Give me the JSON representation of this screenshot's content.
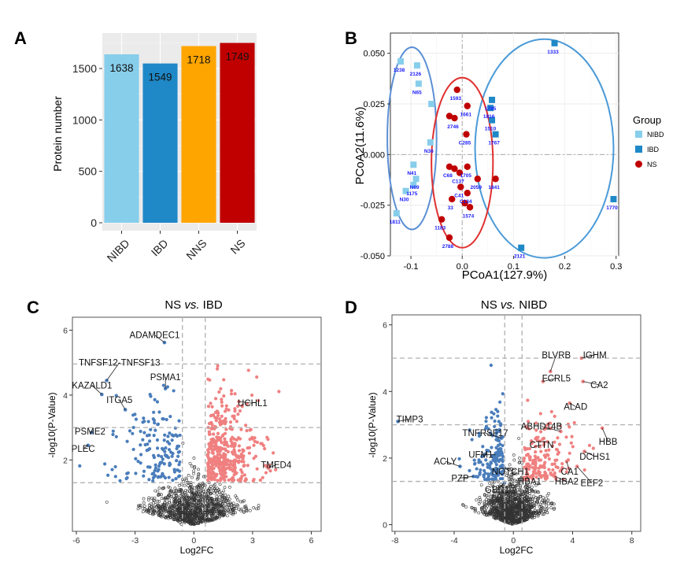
{
  "colors": {
    "NIBD": "#87ceeb",
    "IBD": "#1f88c7",
    "NNS": "#ffa500",
    "NS": "#c00000",
    "down": "#4a7dbb",
    "up": "#f08080",
    "ns_point": "#333333",
    "grid": "#ebebeb",
    "dash": "#b0b0b0",
    "ellipse_nibd": "#5b8fd4",
    "ellipse_ibd": "#4a9ad8",
    "ellipse_ns": "#e03030",
    "sample_label": "#1a1aff"
  },
  "chart_data": [
    {
      "panel": "A",
      "type": "bar",
      "title": "",
      "xlabel": "",
      "ylabel": "Protein number",
      "ylim": [
        0,
        1800
      ],
      "yticks": [
        0,
        500,
        1000,
        1500
      ],
      "categories": [
        "NIBD",
        "IBD",
        "NNS",
        "NS"
      ],
      "values": [
        1638,
        1549,
        1718,
        1749
      ],
      "bar_colors": [
        "#87ceeb",
        "#1f88c7",
        "#ffa500",
        "#c00000"
      ]
    },
    {
      "panel": "B",
      "type": "scatter",
      "title": "",
      "xlabel": "PCoA1(127.9%)",
      "ylabel": "PCoA2(11.6%)",
      "xlim": [
        -0.14,
        0.305
      ],
      "ylim": [
        -0.05,
        0.06
      ],
      "xticks": [
        -0.1,
        0.0,
        0.1,
        0.2,
        0.3
      ],
      "xtick_labels": [
        "-0.1",
        "0.0",
        "0.1",
        "0.2",
        "0.3"
      ],
      "yticks": [
        -0.05,
        -0.025,
        0.0,
        0.025,
        0.05
      ],
      "ytick_labels": [
        "-0.050",
        "-0.025",
        "0.000",
        "0.025",
        "0.050"
      ],
      "legend": {
        "title": "Group",
        "entries": [
          "NIBD",
          "IBD",
          "NS"
        ],
        "position": "right"
      },
      "series": [
        {
          "name": "NIBD",
          "points": [
            {
              "x": -0.12,
              "y": 0.046,
              "label": "1238"
            },
            {
              "x": -0.088,
              "y": 0.044,
              "label": "2126"
            },
            {
              "x": -0.085,
              "y": 0.035,
              "label": "N65"
            },
            {
              "x": -0.06,
              "y": 0.025,
              "label": ""
            },
            {
              "x": -0.062,
              "y": 0.006,
              "label": "N36"
            },
            {
              "x": -0.095,
              "y": -0.005,
              "label": "N41"
            },
            {
              "x": -0.09,
              "y": -0.012,
              "label": "N69"
            },
            {
              "x": -0.095,
              "y": -0.015,
              "label": "1175"
            },
            {
              "x": -0.11,
              "y": -0.018,
              "label": "N30"
            },
            {
              "x": -0.128,
              "y": -0.029,
              "label": "1811"
            }
          ]
        },
        {
          "name": "IBD",
          "points": [
            {
              "x": 0.18,
              "y": 0.055,
              "label": "1333"
            },
            {
              "x": 0.058,
              "y": 0.027,
              "label": "1785"
            },
            {
              "x": 0.055,
              "y": 0.023,
              "label": "1816"
            },
            {
              "x": 0.058,
              "y": 0.017,
              "label": "1510"
            },
            {
              "x": 0.065,
              "y": 0.01,
              "label": "1767"
            },
            {
              "x": 0.295,
              "y": -0.022,
              "label": "1770"
            },
            {
              "x": 0.115,
              "y": -0.046,
              "label": "2121"
            }
          ]
        },
        {
          "name": "NS",
          "points": [
            {
              "x": -0.01,
              "y": 0.032,
              "label": "1593"
            },
            {
              "x": 0.01,
              "y": 0.024,
              "label": "1661"
            },
            {
              "x": -0.025,
              "y": 0.019,
              "label": ""
            },
            {
              "x": -0.015,
              "y": 0.018,
              "label": "2746"
            },
            {
              "x": 0.008,
              "y": 0.01,
              "label": "C285"
            },
            {
              "x": -0.025,
              "y": -0.006,
              "label": "C68"
            },
            {
              "x": -0.015,
              "y": -0.007,
              "label": ""
            },
            {
              "x": 0.01,
              "y": -0.006,
              "label": "1705"
            },
            {
              "x": -0.005,
              "y": -0.009,
              "label": "C137"
            },
            {
              "x": 0.03,
              "y": -0.012,
              "label": "2059"
            },
            {
              "x": 0.065,
              "y": -0.012,
              "label": "1841"
            },
            {
              "x": -0.003,
              "y": -0.016,
              "label": "C41"
            },
            {
              "x": 0.01,
              "y": -0.019,
              "label": "C134"
            },
            {
              "x": -0.02,
              "y": -0.022,
              "label": "33"
            },
            {
              "x": 0.005,
              "y": -0.024,
              "label": ""
            },
            {
              "x": 0.015,
              "y": -0.026,
              "label": "1574"
            },
            {
              "x": -0.04,
              "y": -0.032,
              "label": "1183"
            },
            {
              "x": -0.025,
              "y": -0.041,
              "label": "2788"
            }
          ]
        }
      ],
      "ellipses": [
        {
          "group": "NIBD",
          "cx": -0.098,
          "cy": 0.008,
          "rx": 0.048,
          "ry": 0.045
        },
        {
          "group": "IBD",
          "cx": 0.16,
          "cy": 0.003,
          "rx": 0.135,
          "ry": 0.054
        },
        {
          "group": "NS",
          "cx": 0.0,
          "cy": -0.004,
          "rx": 0.06,
          "ry": 0.042
        }
      ]
    },
    {
      "panel": "C",
      "type": "scatter",
      "title": "NS vs. IBD",
      "title_prefix": "NS",
      "title_vs": "vs.",
      "title_suffix": "IBD",
      "xlabel": "Log2FC",
      "ylabel": "-log10(P-Value)",
      "xlim": [
        -6.2,
        6.5
      ],
      "ylim": [
        -0.2,
        6.4
      ],
      "xticks": [
        -6,
        -3,
        0,
        3,
        6
      ],
      "xtick_labels": [
        "-6",
        "-3",
        "0",
        "3",
        "6"
      ],
      "yticks": [
        2,
        4,
        6
      ],
      "ytick_labels": [
        "2",
        "4",
        "6"
      ],
      "vlines": [
        -0.585,
        0.585
      ],
      "hlines": [
        1.3,
        3.0,
        4.96
      ],
      "down_count": 150,
      "up_count": 400,
      "ns_count": 1100,
      "annotations": [
        {
          "text": "ADAMDEC1",
          "x": -1.5,
          "y": 5.62,
          "tx": -2.0,
          "ty": 5.85
        },
        {
          "text": "TNFSF12-TNFSF13",
          "x": -4.45,
          "y": 4.45,
          "tx": -3.8,
          "ty": 5.0
        },
        {
          "text": "PSMA1",
          "x": -1.45,
          "y": 4.2,
          "tx": -1.45,
          "ty": 4.55
        },
        {
          "text": "KAZALD1",
          "x": -4.7,
          "y": 4.02,
          "tx": -5.2,
          "ty": 4.3
        },
        {
          "text": "ITGA5",
          "x": -3.5,
          "y": 3.55,
          "tx": -3.8,
          "ty": 3.85
        },
        {
          "text": "UCHL1",
          "x": 2.3,
          "y": 3.8,
          "tx": 3.0,
          "ty": 3.75
        },
        {
          "text": "PSME2",
          "x": -5.2,
          "y": 2.85,
          "tx": -5.3,
          "ty": 2.88
        },
        {
          "text": "PLEC",
          "x": -5.4,
          "y": 2.45,
          "tx": -5.65,
          "ty": 2.35
        },
        {
          "text": "TMED4",
          "x": 3.8,
          "y": 1.75,
          "tx": 4.2,
          "ty": 1.85
        }
      ]
    },
    {
      "panel": "D",
      "type": "scatter",
      "title": "NS vs. NIBD",
      "title_prefix": "NS",
      "title_vs": "vs.",
      "title_suffix": "NIBD",
      "xlabel": "Log2FC",
      "ylabel": "-log10(P-Value)",
      "xlim": [
        -8.2,
        8.6
      ],
      "ylim": [
        -0.2,
        6.3
      ],
      "xticks": [
        -8,
        -4,
        0,
        4,
        8
      ],
      "xtick_labels": [
        "-8",
        "-4",
        "0",
        "4",
        "8"
      ],
      "yticks": [
        0,
        2,
        4,
        6
      ],
      "yticks_labels": [
        "0",
        "2",
        "4",
        "6"
      ],
      "vlines": [
        -0.585,
        0.585
      ],
      "hlines": [
        1.3,
        3.0,
        5.0
      ],
      "down_count": 150,
      "up_count": 170,
      "ns_count": 1100,
      "annotations": [
        {
          "text": "BLVRB",
          "x": 2.5,
          "y": 4.6,
          "tx": 2.9,
          "ty": 5.1
        },
        {
          "text": "IGHM",
          "x": 4.6,
          "y": 5.0,
          "tx": 5.5,
          "ty": 5.1
        },
        {
          "text": "FCRL5",
          "x": 2.0,
          "y": 4.3,
          "tx": 2.9,
          "ty": 4.4
        },
        {
          "text": "CA2",
          "x": 4.7,
          "y": 4.3,
          "tx": 5.8,
          "ty": 4.2
        },
        {
          "text": "ALAD",
          "x": 3.8,
          "y": 3.65,
          "tx": 4.2,
          "ty": 3.55
        },
        {
          "text": "TIMP3",
          "x": -7.8,
          "y": 3.1,
          "tx": -7.0,
          "ty": 3.17
        },
        {
          "text": "ABHD14B",
          "x": 3.2,
          "y": 2.8,
          "tx": 1.9,
          "ty": 2.95
        },
        {
          "text": "HBB",
          "x": 6.0,
          "y": 2.9,
          "tx": 6.4,
          "ty": 2.5
        },
        {
          "text": "TNFRSF17",
          "x": -0.8,
          "y": 2.6,
          "tx": -1.9,
          "ty": 2.75
        },
        {
          "text": "CTTN",
          "x": 1.5,
          "y": 2.35,
          "tx": 1.9,
          "ty": 2.4
        },
        {
          "text": "UFM1",
          "x": -1.2,
          "y": 2.1,
          "tx": -2.2,
          "ty": 2.1
        },
        {
          "text": "DCHS1",
          "x": 4.8,
          "y": 2.2,
          "tx": 5.5,
          "ty": 2.05
        },
        {
          "text": "ACLY",
          "x": -3.6,
          "y": 1.75,
          "tx": -4.6,
          "ty": 1.9
        },
        {
          "text": "NOTCH1",
          "x": -0.6,
          "y": 1.7,
          "tx": -0.2,
          "ty": 1.6
        },
        {
          "text": "CA1",
          "x": 3.6,
          "y": 1.9,
          "tx": 3.8,
          "ty": 1.6
        },
        {
          "text": "PZP",
          "x": -2.7,
          "y": 1.45,
          "tx": -3.6,
          "ty": 1.4
        },
        {
          "text": "HBA1",
          "x": 0.9,
          "y": 1.45,
          "tx": 1.1,
          "ty": 1.3
        },
        {
          "text": "HBA2",
          "x": 2.8,
          "y": 1.45,
          "tx": 3.6,
          "ty": 1.3
        },
        {
          "text": "EEF2",
          "x": 4.3,
          "y": 1.75,
          "tx": 5.3,
          "ty": 1.25
        },
        {
          "text": "GBR1",
          "x": -0.6,
          "y": 1.25,
          "tx": -1.1,
          "ty": 1.05
        }
      ]
    }
  ],
  "panel_letters": [
    "A",
    "B",
    "C",
    "D"
  ]
}
